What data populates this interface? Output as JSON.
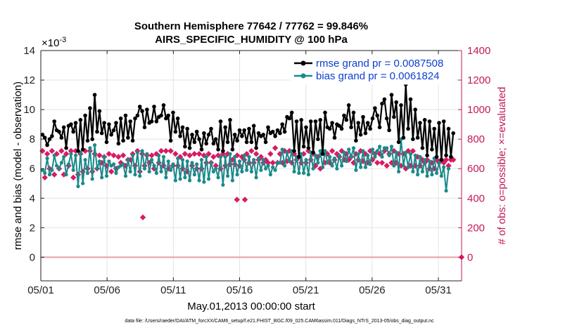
{
  "chart_data": {
    "type": "line",
    "title_line1": "Southern Hemisphere 77642 / 77762 = 99.846%",
    "title_line2": "AIRS_SPECIFIC_HUMIDITY @ 100 hPa",
    "xlabel": "May.01,2013 00:00:00 start",
    "ylabel_left": "rmse and bias (model - observation)",
    "ylabel_right": "# of obs: o=possible; ×=evaluated",
    "exponent_label": "×10",
    "exponent_power": "-3",
    "footnote": "data file: /Users/raeder/DAI/ATM_forcXX/CAM6_setup/f.e21.FHIST_BGC.f09_025.CAM6assim.011/Diags_NTrS_2013-05/obs_diag_output.nc",
    "xlim": [
      0,
      31.75
    ],
    "ylim_left": [
      -1.6,
      14
    ],
    "ylim_right": [
      -160,
      1400
    ],
    "x_ticks": [
      0,
      5,
      10,
      15,
      20,
      25,
      30
    ],
    "x_tick_labels": [
      "05/01",
      "05/06",
      "05/11",
      "05/16",
      "05/21",
      "05/26",
      "05/31"
    ],
    "y_ticks_left": [
      0,
      2,
      4,
      6,
      8,
      10,
      12,
      14
    ],
    "y_ticks_right": [
      0,
      200,
      400,
      600,
      800,
      1000,
      1200,
      1400
    ],
    "grid": true,
    "legend_position": "top-right",
    "colors": {
      "rmse": "#000000",
      "bias": "#1a8a8a",
      "obs": "#d81b60",
      "legend_text": "#0b3fd1",
      "right_axis": "#c2185b",
      "zero_line": "#e8a0a0"
    },
    "series": [
      {
        "name": "rmse grand pr = 0.0087508",
        "axis": "left",
        "values": [
          8.3,
          8.1,
          7.6,
          8.0,
          8.2,
          9.2,
          8.6,
          8.5,
          8.1,
          8.8,
          7.4,
          8.9,
          9.0,
          8.5,
          9.1,
          7.2,
          9.3,
          7.3,
          9.6,
          7.9,
          10.1,
          8.0,
          11.0,
          8.5,
          9.9,
          8.4,
          9.1,
          7.8,
          9.0,
          8.3,
          8.6,
          9.1,
          7.7,
          9.4,
          7.9,
          9.6,
          8.1,
          9.2,
          7.9,
          9.4,
          9.6,
          10.2,
          9.9,
          8.8,
          10.0,
          9.1,
          9.2,
          10.2,
          9.2,
          9.5,
          9.6,
          10.3,
          9.4,
          9.6,
          7.9,
          9.8,
          8.5,
          9.4,
          8.2,
          8.8,
          7.5,
          8.7,
          7.4,
          8.3,
          7.8,
          8.5,
          8.0,
          7.3,
          8.4,
          7.7,
          8.3,
          8.7,
          7.7,
          8.0,
          7.3,
          9.2,
          7.2,
          8.8,
          7.8,
          9.3,
          7.3,
          8.3,
          7.9,
          8.6,
          8.2,
          8.6,
          7.8,
          8.7,
          7.8,
          8.9,
          7.4,
          8.4,
          8.2,
          8.3,
          7.8,
          8.8,
          8.4,
          8.5,
          8.2,
          8.6,
          8.4,
          9.0,
          8.5,
          9.5,
          9.4,
          9.8,
          7.2,
          9.2,
          6.8,
          9.3,
          7.5,
          8.8,
          7.4,
          9.2,
          7.1,
          9.2,
          8.0,
          9.3,
          7.0,
          9.8,
          8.8,
          8.7,
          9.1,
          8.1,
          9.0,
          8.9,
          8.7,
          9.6,
          9.3,
          10.3,
          8.8,
          9.8,
          7.9,
          9.1,
          8.3,
          9.5,
          8.4,
          9.1,
          8.7,
          9.4,
          10.1,
          9.6,
          8.8,
          10.4,
          10.7,
          9.4,
          8.6,
          11.0,
          9.5,
          10.5,
          7.8,
          10.3,
          8.1,
          11.7,
          8.7,
          10.7,
          8.0,
          10.0,
          8.1,
          9.1,
          7.4,
          9.3,
          6.9,
          9.2,
          7.3,
          8.7,
          6.8,
          9.1,
          6.6,
          9.2,
          6.9,
          8.7,
          6.8,
          8.4
        ]
      },
      {
        "name": "bias grand pr = 0.0061824",
        "axis": "left",
        "values": [
          5.9,
          5.7,
          6.7,
          5.6,
          5.9,
          6.9,
          6.2,
          6.0,
          6.4,
          6.8,
          5.6,
          6.3,
          7.0,
          5.9,
          6.9,
          4.8,
          7.1,
          5.0,
          6.6,
          5.7,
          7.4,
          5.3,
          7.6,
          6.0,
          6.5,
          5.4,
          6.8,
          5.5,
          6.5,
          6.2,
          6.3,
          5.7,
          6.1,
          6.2,
          6.3,
          5.5,
          6.6,
          5.8,
          6.9,
          5.6,
          7.1,
          5.5,
          7.2,
          6.0,
          7.0,
          5.8,
          6.6,
          6.2,
          5.7,
          6.9,
          5.8,
          6.8,
          5.4,
          6.5,
          5.9,
          6.3,
          5.2,
          6.7,
          5.3,
          6.6,
          5.4,
          6.5,
          5.2,
          6.4,
          5.6,
          6.3,
          5.2,
          6.6,
          5.1,
          6.8,
          5.3,
          6.4,
          5.8,
          6.0,
          5.4,
          6.8,
          4.9,
          6.8,
          5.5,
          7.0,
          5.2,
          6.8,
          5.6,
          6.5,
          5.8,
          6.9,
          5.9,
          6.8,
          5.8,
          6.6,
          5.4,
          6.7,
          5.9,
          6.6,
          6.0,
          6.2,
          5.6,
          6.1,
          5.9,
          6.4,
          6.4,
          7.3,
          6.2,
          7.1,
          6.5,
          7.2,
          5.8,
          6.8,
          5.7,
          7.0,
          5.7,
          6.6,
          5.6,
          7.1,
          6.0,
          6.9,
          6.4,
          7.2,
          6.1,
          7.2,
          6.4,
          6.8,
          6.2,
          6.7,
          6.0,
          6.9,
          6.2,
          7.1,
          6.5,
          7.3,
          6.8,
          7.4,
          5.9,
          7.0,
          6.1,
          7.2,
          6.1,
          6.9,
          6.3,
          7.3,
          6.8,
          7.2,
          7.5,
          6.8,
          7.4,
          7.4,
          6.9,
          7.5,
          6.2,
          7.1,
          5.8,
          8.0,
          6.2,
          7.1,
          6.1,
          7.0,
          5.8,
          6.9,
          5.6,
          6.8,
          5.8,
          6.6,
          5.5,
          6.5,
          5.6,
          6.7,
          5.7,
          6.4,
          5.5,
          6.1,
          4.5,
          6.0
        ]
      },
      {
        "name": "obs evaluated",
        "axis": "right",
        "values": [
          720,
          540,
          700,
          600,
          720,
          560,
          700,
          600,
          720,
          560,
          700,
          620,
          720,
          540,
          720,
          560,
          700,
          580,
          720,
          600,
          720,
          580,
          700,
          600,
          690,
          640,
          680,
          620,
          700,
          580,
          690,
          600,
          680,
          640,
          690,
          620,
          660,
          660,
          700,
          620,
          720,
          580,
          700,
          620,
          690,
          640,
          690,
          600,
          700,
          640,
          720,
          620,
          720,
          600,
          720,
          620,
          700,
          620,
          680,
          600,
          700,
          580,
          690,
          620,
          700,
          600,
          700,
          600,
          690,
          640,
          700,
          640,
          680,
          620,
          690,
          600,
          700,
          620,
          700,
          630,
          660,
          630,
          690,
          620,
          680,
          660,
          700,
          640,
          720,
          640,
          700,
          660,
          680,
          640,
          660,
          640,
          700,
          640,
          740,
          640,
          700,
          640,
          720,
          650,
          720,
          640,
          700,
          660,
          680,
          640,
          700,
          640,
          720,
          660,
          700,
          620,
          680,
          600,
          720,
          640,
          700,
          640,
          720,
          660,
          700,
          680,
          720,
          660,
          700,
          660,
          680,
          640,
          700,
          660,
          720,
          650,
          700,
          640,
          720,
          660,
          700,
          640,
          700,
          640,
          720,
          620,
          700,
          640,
          720,
          640,
          700,
          620,
          700,
          600,
          720,
          620,
          720,
          620,
          680,
          620,
          660,
          640,
          660,
          600,
          640,
          600,
          660,
          640,
          660,
          640,
          660,
          620,
          660,
          660
        ]
      }
    ],
    "obs_outliers": [
      {
        "x": 7.7,
        "y": 270
      },
      {
        "x": 14.8,
        "y": 390
      },
      {
        "x": 15.4,
        "y": 390
      }
    ],
    "obs_last_point": {
      "x": 31.75,
      "y": 0
    }
  }
}
